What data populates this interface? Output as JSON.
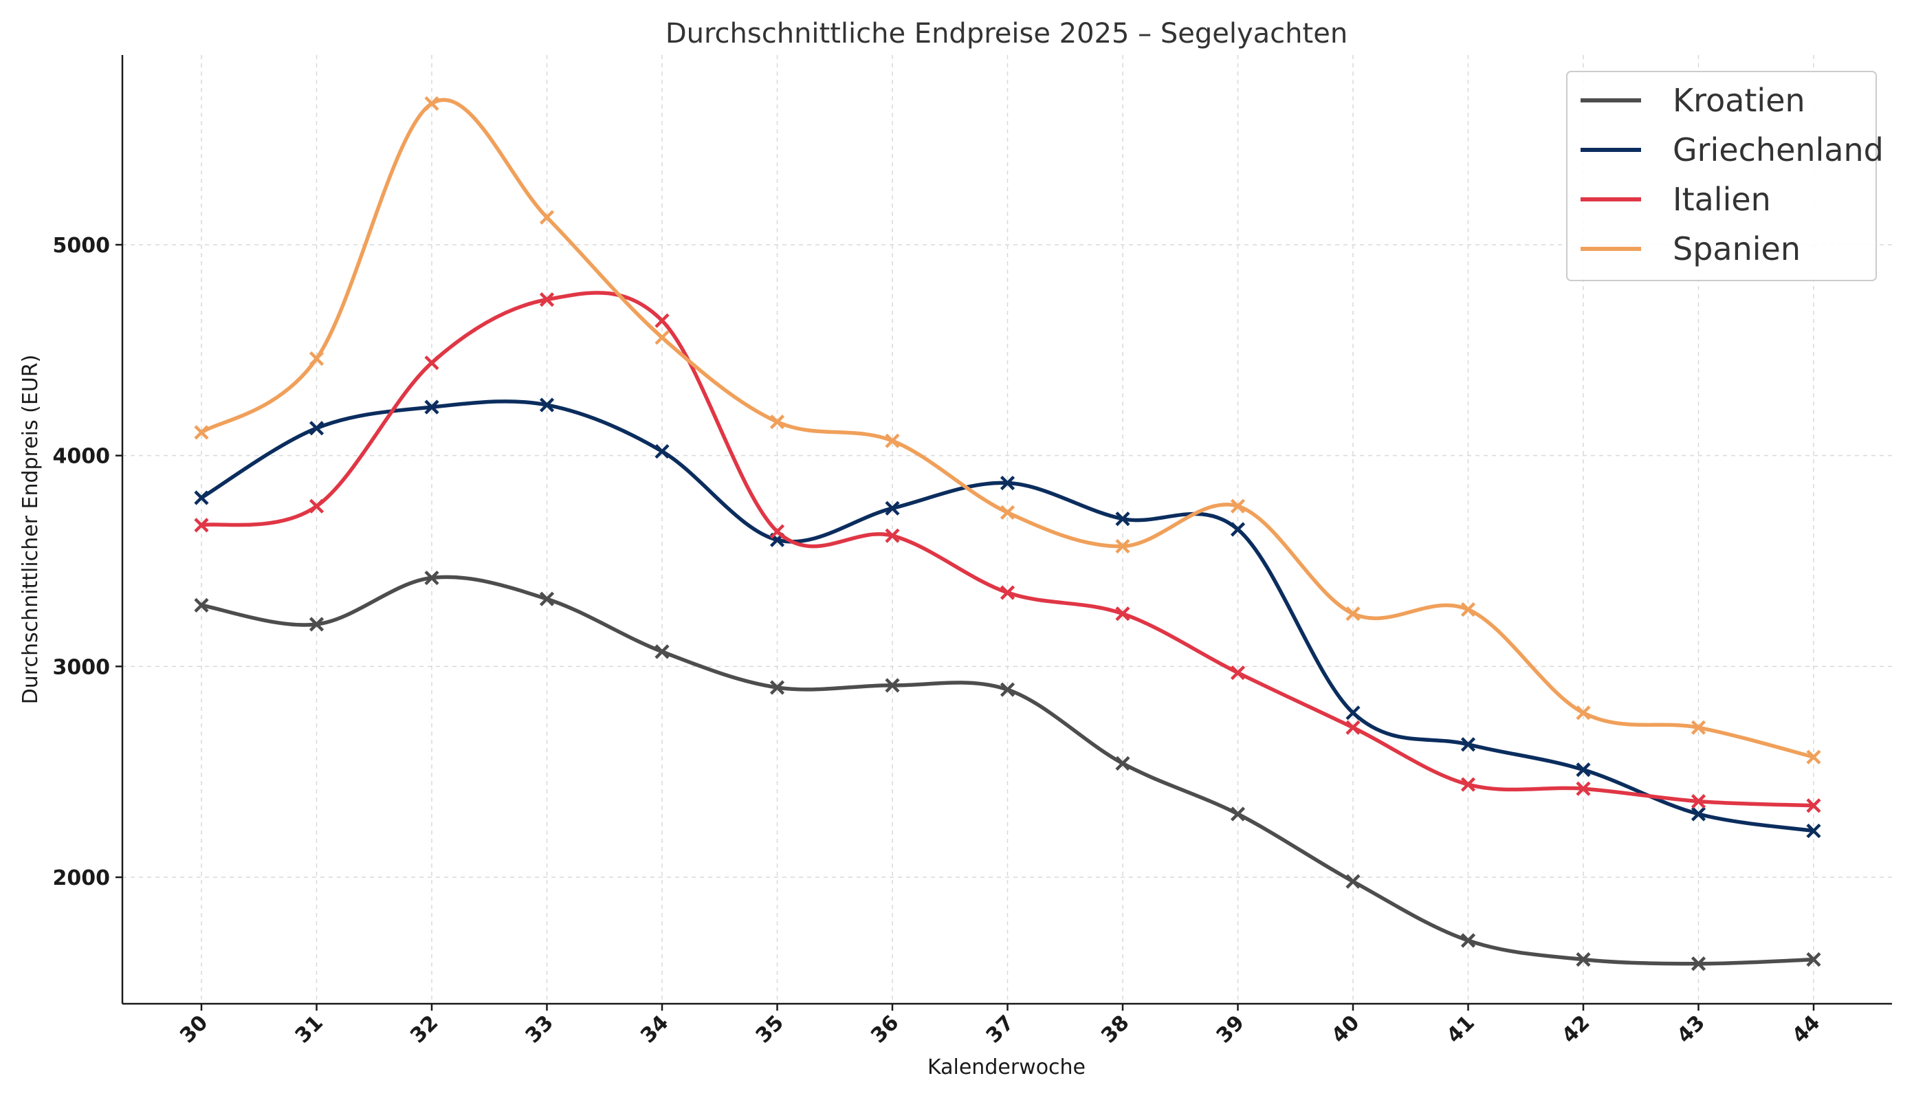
{
  "chart_data": {
    "type": "line",
    "title": "Durchschnittliche Endpreise 2025 – Segelyachten",
    "xlabel": "Kalenderwoche",
    "ylabel": "Durchschnittlicher Endpreis (EUR)",
    "categories": [
      "30",
      "31",
      "32",
      "33",
      "34",
      "35",
      "36",
      "37",
      "38",
      "39",
      "40",
      "41",
      "42",
      "43",
      "44"
    ],
    "ylim": [
      1400,
      5900
    ],
    "yticks": [
      2000,
      3000,
      4000,
      5000
    ],
    "grid": true,
    "legend_position": "top-right",
    "series": [
      {
        "name": "Kroatien",
        "color": "#4d4d4d",
        "values": [
          3290,
          3200,
          3420,
          3320,
          3070,
          2900,
          2910,
          2890,
          2540,
          2300,
          1980,
          1700,
          1610,
          1590,
          1610
        ]
      },
      {
        "name": "Griechenland",
        "color": "#0b2d5e",
        "values": [
          3800,
          4130,
          4230,
          4240,
          4020,
          3600,
          3750,
          3870,
          3700,
          3650,
          2780,
          2630,
          2510,
          2300,
          2220
        ]
      },
      {
        "name": "Italien",
        "color": "#e03645",
        "values": [
          3670,
          3760,
          4440,
          4740,
          4640,
          3640,
          3620,
          3350,
          3250,
          2970,
          2710,
          2440,
          2420,
          2360,
          2340
        ]
      },
      {
        "name": "Spanien",
        "color": "#f0a05a",
        "values": [
          4110,
          4460,
          5670,
          5130,
          4560,
          4160,
          4070,
          3730,
          3570,
          3760,
          3250,
          3270,
          2780,
          2710,
          2570
        ]
      }
    ]
  }
}
